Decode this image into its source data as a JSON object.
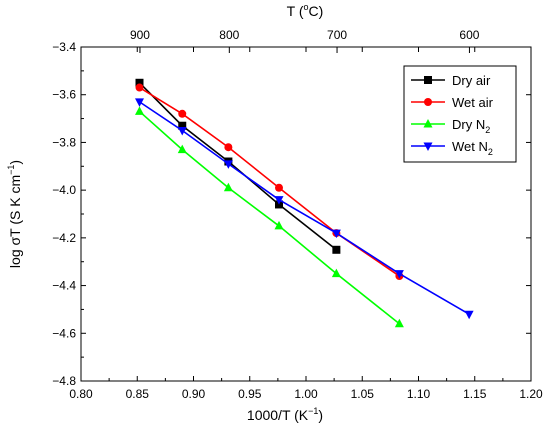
{
  "chart_data": {
    "type": "line",
    "xlabel_main": "1000/T (K",
    "xlabel_sup": "−1",
    "xlabel_end": ")",
    "ylabel_main": "log σT (S K cm",
    "ylabel_sup": "−1",
    "ylabel_end": ")",
    "top_axis_label_main": "T (",
    "top_axis_label_sup": "o",
    "top_axis_label_end": "C)",
    "xlim": [
      0.8,
      1.2
    ],
    "ylim": [
      -4.8,
      -3.4
    ],
    "x_ticks": [
      "0.80",
      "0.85",
      "0.90",
      "0.95",
      "1.00",
      "1.05",
      "1.10",
      "1.15",
      "1.20"
    ],
    "y_ticks": [
      "−3.4",
      "−3.6",
      "−3.8",
      "−4.0",
      "−4.2",
      "−4.4",
      "−4.6",
      "−4.8"
    ],
    "top_ticks": [
      {
        "label": "900",
        "celsius": 900
      },
      {
        "label": "800",
        "celsius": 800
      },
      {
        "label": "700",
        "celsius": 700
      },
      {
        "label": "600",
        "celsius": 600
      }
    ],
    "grid": false,
    "legend_position": "top-right",
    "series": [
      {
        "name": "Dry air",
        "color": "#000000",
        "marker": "square",
        "x": [
          0.852,
          0.89,
          0.931,
          0.976,
          1.027
        ],
        "y": [
          -3.55,
          -3.73,
          -3.88,
          -4.06,
          -4.25
        ]
      },
      {
        "name": "Wet air",
        "color": "#ff0000",
        "marker": "circle",
        "x": [
          0.852,
          0.89,
          0.931,
          0.976,
          1.027,
          1.083
        ],
        "y": [
          -3.57,
          -3.68,
          -3.82,
          -3.99,
          -4.18,
          -4.36
        ]
      },
      {
        "name": "Dry N",
        "name_sub": "2",
        "color": "#00ff00",
        "marker": "triangle-up",
        "x": [
          0.852,
          0.89,
          0.931,
          0.976,
          1.027,
          1.083
        ],
        "y": [
          -3.67,
          -3.83,
          -3.99,
          -4.15,
          -4.35,
          -4.56
        ]
      },
      {
        "name": "Wet N",
        "name_sub": "2",
        "color": "#0000ff",
        "marker": "triangle-down",
        "x": [
          0.852,
          0.89,
          0.931,
          0.976,
          1.027,
          1.083,
          1.145
        ],
        "y": [
          -3.63,
          -3.75,
          -3.89,
          -4.04,
          -4.18,
          -4.35,
          -4.52
        ]
      }
    ]
  }
}
